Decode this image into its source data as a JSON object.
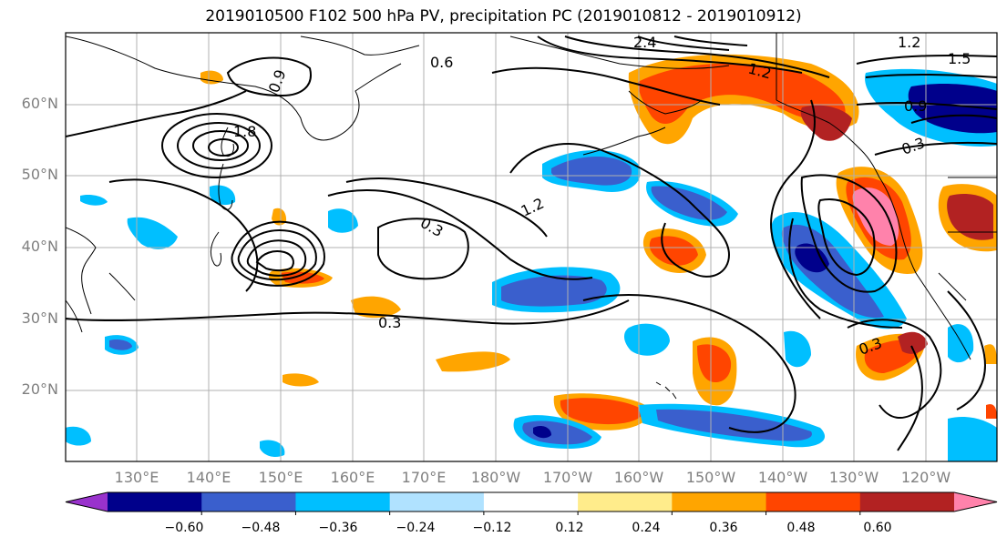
{
  "title": "2019010500 F102 500 hPa PV, precipitation PC (2019010812 - 2019010912)",
  "lat_labels": [
    "60°N",
    "50°N",
    "40°N",
    "30°N",
    "20°N"
  ],
  "lon_labels": [
    "130°E",
    "140°E",
    "150°E",
    "160°E",
    "170°E",
    "180°W",
    "170°W",
    "160°W",
    "150°W",
    "140°W",
    "130°W",
    "120°W"
  ],
  "colorbar": {
    "colors": [
      "#9932cc",
      "#00008b",
      "#3a5fcd",
      "#00bfff",
      "#b0e2ff",
      "#ffffff",
      "#ffec8b",
      "#ffa500",
      "#ff4500",
      "#b22222",
      "#ff82ab"
    ],
    "tick_labels": [
      "−0.60",
      "−0.48",
      "−0.36",
      "−0.24",
      "−0.12",
      "0.12",
      "0.24",
      "0.36",
      "0.48",
      "0.60"
    ]
  },
  "contour_labels": [
    "0.6",
    "0.9",
    "1.2",
    "1.5",
    "1.8",
    "2.4",
    "0.3"
  ],
  "colors": {
    "gridline": "#b0b0b0",
    "contour": "#000000",
    "axis_label": "#7f7f7f"
  }
}
